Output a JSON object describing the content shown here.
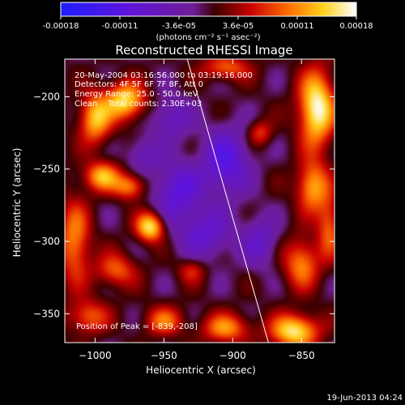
{
  "chart_data": {
    "type": "heatmap",
    "title": "Reconstructed RHESSI Image",
    "xlabel": "Heliocentric X (arcsec)",
    "ylabel": "Heliocentric Y (arcsec)",
    "xlim": [
      -1022,
      -826
    ],
    "ylim": [
      -370,
      -174
    ],
    "x_ticks": [
      -1000,
      -950,
      -900,
      -850
    ],
    "y_ticks": [
      -350,
      -300,
      -250,
      -200
    ],
    "colorbar": {
      "label": "(photons cm⁻² s⁻¹ asec⁻²)",
      "range": [
        -0.00018,
        0.00018
      ],
      "ticks": [
        "-0.00018",
        "-0.00011",
        "-3.6e-05",
        "3.6e-05",
        "0.00011",
        "0.00018"
      ]
    },
    "annotations": {
      "time": "20-May-2004 03:16:56.000 to 03:19:16.000",
      "detectors": "Detectors: 4F 5F 6F 7F 8F, Att 0",
      "energy": "Energy Range: 25.0 - 50.0 keV",
      "method": "Clean    Total counts: 2.30E+03",
      "peak": "Position of Peak = [-839,-208]"
    },
    "limb_line": {
      "x": [
        -933,
        -874
      ],
      "y": [
        -174,
        -370
      ]
    },
    "peak": {
      "x": -839,
      "y": -208,
      "value": 0.00018
    },
    "sources": [
      {
        "x": -839,
        "y": -208,
        "amp": 1.0,
        "sx": 9,
        "sy": 18
      },
      {
        "x": -978,
        "y": -203,
        "amp": 0.85,
        "sx": 10,
        "sy": 9
      },
      {
        "x": -1000,
        "y": -215,
        "amp": 0.75,
        "sx": 8,
        "sy": 12
      },
      {
        "x": -960,
        "y": -290,
        "amp": 0.9,
        "sx": 7,
        "sy": 7
      },
      {
        "x": -995,
        "y": -255,
        "amp": 0.7,
        "sx": 9,
        "sy": 7
      },
      {
        "x": -975,
        "y": -262,
        "amp": 0.6,
        "sx": 8,
        "sy": 6
      },
      {
        "x": -1015,
        "y": -300,
        "amp": 0.6,
        "sx": 8,
        "sy": 20
      },
      {
        "x": -985,
        "y": -320,
        "amp": 0.5,
        "sx": 10,
        "sy": 8
      },
      {
        "x": -855,
        "y": -362,
        "amp": 0.9,
        "sx": 12,
        "sy": 8
      },
      {
        "x": -905,
        "y": -360,
        "amp": 0.6,
        "sx": 12,
        "sy": 7
      },
      {
        "x": -950,
        "y": -355,
        "amp": 0.5,
        "sx": 10,
        "sy": 7
      },
      {
        "x": -1005,
        "y": -352,
        "amp": 0.5,
        "sx": 10,
        "sy": 8
      },
      {
        "x": -842,
        "y": -262,
        "amp": 0.7,
        "sx": 8,
        "sy": 12
      },
      {
        "x": -850,
        "y": -315,
        "amp": 0.6,
        "sx": 9,
        "sy": 12
      },
      {
        "x": -830,
        "y": -290,
        "amp": 0.5,
        "sx": 6,
        "sy": 15
      },
      {
        "x": -905,
        "y": -180,
        "amp": 0.5,
        "sx": 12,
        "sy": 6
      },
      {
        "x": -880,
        "y": -225,
        "amp": 0.4,
        "sx": 6,
        "sy": 6
      },
      {
        "x": -930,
        "y": -320,
        "amp": 0.35,
        "sx": 7,
        "sy": 6
      },
      {
        "x": -940,
        "y": -265,
        "amp": -0.55,
        "sx": 12,
        "sy": 14
      },
      {
        "x": -905,
        "y": -245,
        "amp": -0.6,
        "sx": 12,
        "sy": 16
      },
      {
        "x": -920,
        "y": -295,
        "amp": -0.45,
        "sx": 14,
        "sy": 12
      },
      {
        "x": -945,
        "y": -215,
        "amp": -0.4,
        "sx": 10,
        "sy": 10
      },
      {
        "x": -880,
        "y": -300,
        "amp": -0.4,
        "sx": 9,
        "sy": 12
      },
      {
        "x": -965,
        "y": -240,
        "amp": -0.35,
        "sx": 8,
        "sy": 8
      }
    ]
  },
  "footer": {
    "date": "19-Jun-2013 04:24"
  }
}
